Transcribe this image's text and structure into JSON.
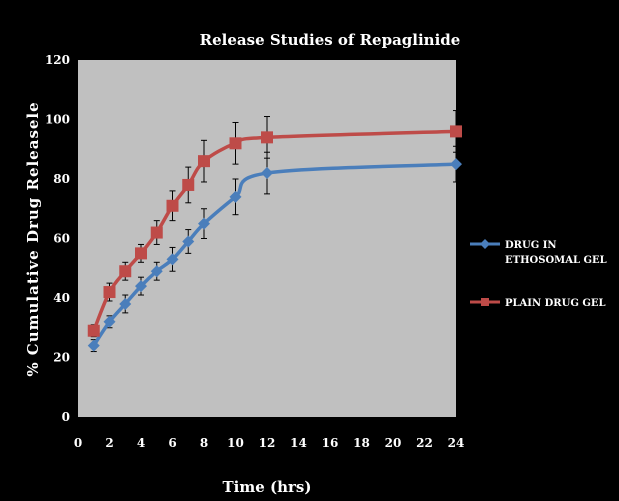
{
  "chart_data": {
    "type": "line",
    "title": "Release Studies of Repaglinide",
    "xlabel": "Time (hrs)",
    "ylabel": "% Cumulative Drug Releasele",
    "xlim": [
      0,
      24
    ],
    "ylim": [
      0,
      120
    ],
    "xticks": [
      0,
      2,
      4,
      6,
      8,
      10,
      12,
      14,
      16,
      18,
      20,
      22,
      24
    ],
    "yticks": [
      0,
      20,
      40,
      60,
      80,
      100,
      120
    ],
    "grid": false,
    "legend_position": "right",
    "plot_background": "#c0c0c0",
    "series": [
      {
        "name": "DRUG IN ETHOSOMAL GEL",
        "legend_lines": [
          "DRUG IN",
          "ETHOSOMAL GEL"
        ],
        "color": "#4a7ebb",
        "marker": "diamond",
        "x": [
          1,
          2,
          3,
          4,
          5,
          6,
          7,
          8,
          10,
          12,
          24
        ],
        "y": [
          24,
          32,
          38,
          44,
          49,
          53,
          59,
          65,
          74,
          82,
          85
        ],
        "error": [
          2,
          2,
          3,
          3,
          3,
          4,
          4,
          5,
          6,
          7,
          6
        ]
      },
      {
        "name": "PLAIN DRUG GEL",
        "legend_lines": [
          "PLAIN DRUG GEL"
        ],
        "color": "#be4b48",
        "marker": "square",
        "x": [
          1,
          2,
          3,
          4,
          5,
          6,
          7,
          8,
          10,
          12,
          24
        ],
        "y": [
          29,
          42,
          49,
          55,
          62,
          71,
          78,
          86,
          92,
          94,
          96
        ],
        "error": [
          2,
          3,
          3,
          3,
          4,
          5,
          6,
          7,
          7,
          7,
          7
        ]
      }
    ]
  }
}
